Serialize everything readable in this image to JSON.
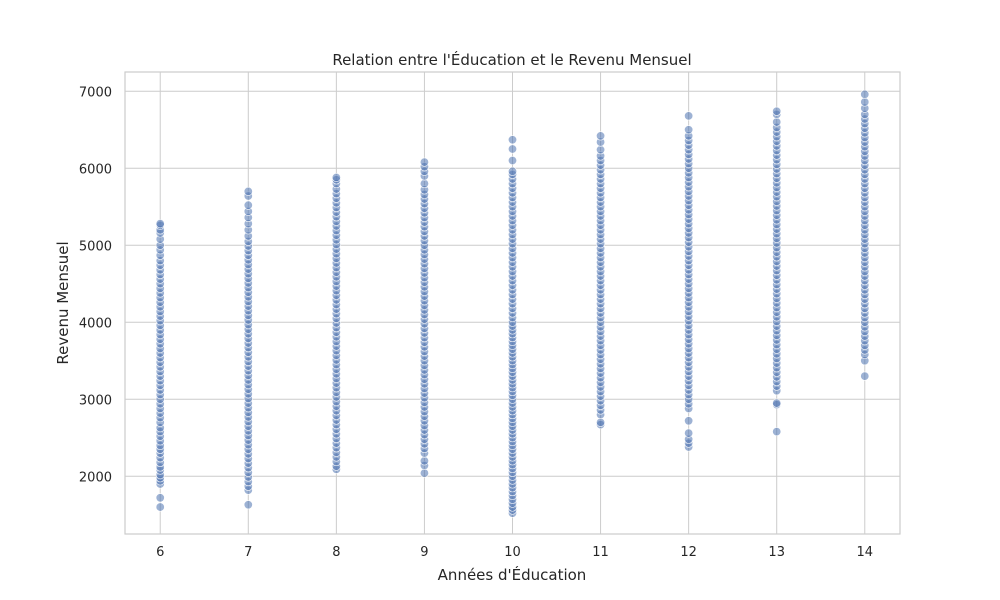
{
  "chart_data": {
    "type": "scatter",
    "title": "Relation entre l'Éducation et le Revenu Mensuel",
    "xlabel": "Années d'Éducation",
    "ylabel": "Revenu Mensuel",
    "xlim": [
      5.6,
      14.4
    ],
    "ylim": [
      1250,
      7250
    ],
    "xticks": [
      6,
      7,
      8,
      9,
      10,
      11,
      12,
      13,
      14
    ],
    "yticks": [
      2000,
      3000,
      4000,
      5000,
      6000,
      7000
    ],
    "grid": true,
    "legend": "none",
    "point_color": "#4c72b0",
    "point_alpha": 0.55,
    "series": [
      {
        "points_by_x": [
          {
            "x": 6,
            "y": [
              1600,
              1720,
              1900,
              1940,
              1980,
              2020,
              2080,
              2120,
              2180,
              2240,
              2300,
              2350,
              2400,
              2460,
              2520,
              2580,
              2630,
              2700,
              2760,
              2820,
              2880,
              2940,
              3000,
              3060,
              3120,
              3180,
              3240,
              3300,
              3360,
              3420,
              3480,
              3540,
              3600,
              3660,
              3720,
              3780,
              3840,
              3900,
              3960,
              4020,
              4080,
              4140,
              4200,
              4260,
              4320,
              4380,
              4440,
              4500,
              4560,
              4620,
              4680,
              4740,
              4800,
              4870,
              4940,
              5000,
              5080,
              5160,
              5200,
              5260,
              5280
            ]
          },
          {
            "x": 7,
            "y": [
              1630,
              1820,
              1870,
              1930,
              1990,
              2050,
              2110,
              2170,
              2230,
              2290,
              2350,
              2410,
              2470,
              2530,
              2590,
              2650,
              2710,
              2770,
              2830,
              2890,
              2950,
              3010,
              3070,
              3130,
              3190,
              3250,
              3310,
              3370,
              3430,
              3490,
              3550,
              3610,
              3670,
              3730,
              3790,
              3850,
              3910,
              3970,
              4030,
              4090,
              4150,
              4210,
              4270,
              4330,
              4390,
              4450,
              4510,
              4570,
              4630,
              4690,
              4750,
              4810,
              4870,
              4930,
              4990,
              5050,
              5120,
              5200,
              5280,
              5360,
              5440,
              5520,
              5640,
              5700
            ]
          },
          {
            "x": 8,
            "y": [
              2090,
              2130,
              2190,
              2250,
              2310,
              2370,
              2430,
              2490,
              2550,
              2610,
              2670,
              2730,
              2790,
              2850,
              2910,
              2970,
              3030,
              3090,
              3150,
              3210,
              3270,
              3330,
              3390,
              3450,
              3510,
              3570,
              3630,
              3690,
              3750,
              3810,
              3870,
              3930,
              3990,
              4050,
              4110,
              4170,
              4230,
              4290,
              4350,
              4410,
              4470,
              4530,
              4590,
              4650,
              4710,
              4770,
              4830,
              4890,
              4950,
              5010,
              5070,
              5130,
              5190,
              5250,
              5310,
              5370,
              5430,
              5490,
              5550,
              5610,
              5670,
              5730,
              5800,
              5850,
              5880
            ]
          },
          {
            "x": 9,
            "y": [
              2040,
              2140,
              2200,
              2300,
              2360,
              2420,
              2480,
              2540,
              2600,
              2660,
              2720,
              2780,
              2840,
              2900,
              2960,
              3020,
              3080,
              3140,
              3200,
              3260,
              3320,
              3380,
              3440,
              3500,
              3560,
              3620,
              3680,
              3740,
              3800,
              3860,
              3920,
              3980,
              4040,
              4100,
              4160,
              4220,
              4280,
              4340,
              4400,
              4460,
              4520,
              4580,
              4640,
              4700,
              4760,
              4820,
              4880,
              4940,
              5000,
              5060,
              5120,
              5180,
              5240,
              5300,
              5360,
              5420,
              5480,
              5540,
              5600,
              5660,
              5720,
              5800,
              5900,
              5960,
              6020,
              6080
            ]
          },
          {
            "x": 10,
            "y": [
              1520,
              1560,
              1600,
              1650,
              1700,
              1750,
              1800,
              1850,
              1900,
              1950,
              2000,
              2050,
              2100,
              2150,
              2200,
              2250,
              2300,
              2350,
              2400,
              2450,
              2500,
              2550,
              2600,
              2650,
              2700,
              2750,
              2800,
              2850,
              2900,
              2950,
              3000,
              3050,
              3100,
              3150,
              3200,
              3250,
              3300,
              3350,
              3400,
              3450,
              3500,
              3550,
              3600,
              3650,
              3700,
              3750,
              3800,
              3850,
              3900,
              3950,
              4000,
              4060,
              4120,
              4180,
              4240,
              4300,
              4360,
              4420,
              4480,
              4540,
              4600,
              4660,
              4720,
              4780,
              4840,
              4900,
              4960,
              5020,
              5080,
              5140,
              5200,
              5260,
              5320,
              5380,
              5440,
              5500,
              5560,
              5620,
              5680,
              5740,
              5800,
              5860,
              5920,
              5960,
              6100,
              6250,
              6370
            ]
          },
          {
            "x": 11,
            "y": [
              2670,
              2700,
              2800,
              2860,
              2920,
              2980,
              3040,
              3100,
              3160,
              3220,
              3280,
              3340,
              3400,
              3460,
              3520,
              3580,
              3640,
              3700,
              3760,
              3820,
              3880,
              3940,
              4000,
              4060,
              4120,
              4180,
              4240,
              4300,
              4360,
              4420,
              4480,
              4540,
              4600,
              4660,
              4720,
              4780,
              4840,
              4900,
              4960,
              5020,
              5080,
              5140,
              5200,
              5260,
              5320,
              5380,
              5440,
              5500,
              5560,
              5620,
              5680,
              5740,
              5800,
              5860,
              5920,
              5980,
              6040,
              6100,
              6160,
              6240,
              6340,
              6420
            ]
          },
          {
            "x": 12,
            "y": [
              2380,
              2430,
              2480,
              2560,
              2720,
              2880,
              2940,
              3000,
              3060,
              3120,
              3180,
              3240,
              3300,
              3360,
              3420,
              3480,
              3540,
              3600,
              3660,
              3720,
              3780,
              3840,
              3900,
              3960,
              4020,
              4080,
              4140,
              4200,
              4260,
              4320,
              4380,
              4440,
              4500,
              4560,
              4620,
              4680,
              4740,
              4800,
              4860,
              4920,
              4980,
              5040,
              5100,
              5160,
              5220,
              5280,
              5340,
              5400,
              5460,
              5520,
              5580,
              5640,
              5700,
              5760,
              5820,
              5880,
              5940,
              6000,
              6060,
              6120,
              6180,
              6240,
              6300,
              6360,
              6420,
              6500,
              6680
            ]
          },
          {
            "x": 13,
            "y": [
              2580,
              2930,
              2950,
              3110,
              3170,
              3230,
              3290,
              3350,
              3410,
              3470,
              3530,
              3590,
              3650,
              3710,
              3770,
              3830,
              3890,
              3950,
              4010,
              4070,
              4130,
              4190,
              4250,
              4310,
              4370,
              4430,
              4490,
              4550,
              4610,
              4670,
              4730,
              4790,
              4850,
              4910,
              4970,
              5030,
              5090,
              5150,
              5210,
              5270,
              5330,
              5390,
              5450,
              5510,
              5570,
              5630,
              5690,
              5750,
              5810,
              5870,
              5930,
              5990,
              6050,
              6110,
              6170,
              6230,
              6290,
              6350,
              6410,
              6470,
              6530,
              6600,
              6700,
              6740
            ]
          },
          {
            "x": 14,
            "y": [
              3300,
              3500,
              3580,
              3640,
              3700,
              3760,
              3820,
              3880,
              3940,
              4000,
              4060,
              4120,
              4180,
              4240,
              4300,
              4360,
              4420,
              4480,
              4540,
              4600,
              4660,
              4720,
              4780,
              4840,
              4900,
              4960,
              5020,
              5080,
              5140,
              5200,
              5260,
              5320,
              5380,
              5440,
              5500,
              5560,
              5620,
              5680,
              5740,
              5800,
              5860,
              5920,
              5980,
              6040,
              6100,
              6160,
              6220,
              6280,
              6340,
              6400,
              6460,
              6520,
              6580,
              6640,
              6700,
              6780,
              6860,
              6960
            ]
          }
        ]
      }
    ]
  }
}
